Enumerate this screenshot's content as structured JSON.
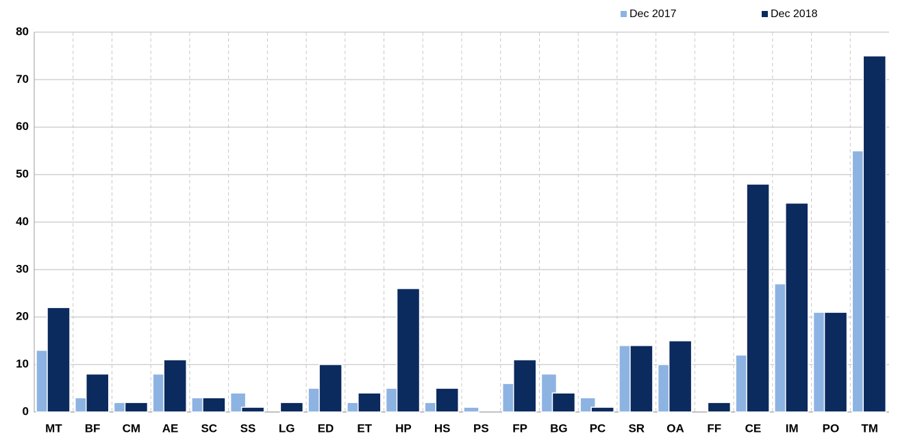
{
  "chart_data": {
    "type": "bar",
    "categories": [
      "MT",
      "BF",
      "CM",
      "AE",
      "SC",
      "SS",
      "LG",
      "ED",
      "ET",
      "HP",
      "HS",
      "PS",
      "FP",
      "BG",
      "PC",
      "SR",
      "OA",
      "FF",
      "CE",
      "IM",
      "PO",
      "TM"
    ],
    "series": [
      {
        "name": "Dec 2017",
        "color": "#8db3e2",
        "values": [
          13,
          3,
          2,
          8,
          3,
          4,
          0,
          5,
          2,
          5,
          2,
          1,
          6,
          8,
          3,
          14,
          10,
          0,
          12,
          27,
          21,
          55
        ]
      },
      {
        "name": "Dec 2018",
        "color": "#0b2a5e",
        "values": [
          22,
          8,
          2,
          11,
          3,
          1,
          2,
          10,
          4,
          26,
          5,
          0,
          11,
          4,
          1,
          14,
          15,
          2,
          48,
          44,
          21,
          75
        ]
      }
    ],
    "ylim": [
      0,
      80
    ],
    "yticks": [
      0,
      10,
      20,
      30,
      40,
      50,
      60,
      70,
      80
    ],
    "grid": true,
    "legend": "top-right"
  }
}
